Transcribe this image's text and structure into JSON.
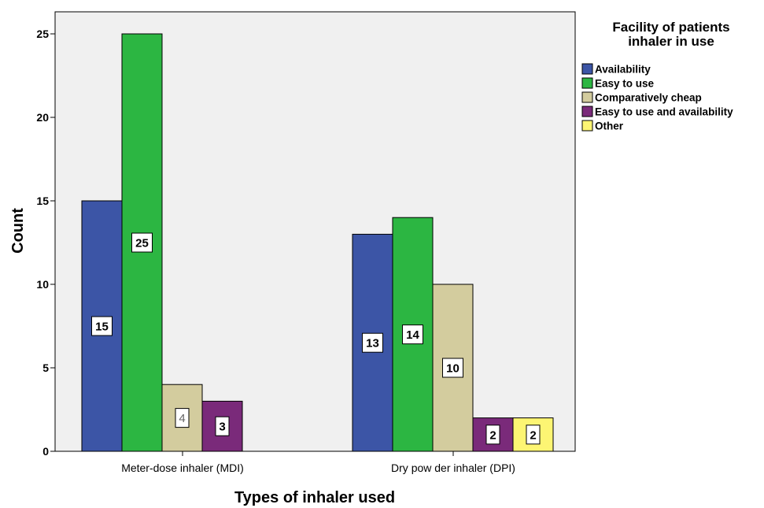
{
  "chart_data": {
    "type": "bar",
    "title": "",
    "xlabel": "Types of inhaler used",
    "ylabel": "Count",
    "categories": [
      "Meter-dose inhaler (MDI)",
      "Dry pow der inhaler (DPI)"
    ],
    "ylim": [
      0,
      27
    ],
    "yticks": [
      0,
      5,
      10,
      15,
      20,
      25
    ],
    "grid": false,
    "legend": {
      "title_lines": [
        "Facility of patients",
        "inhaler in use"
      ],
      "position": "top-right"
    },
    "series": [
      {
        "name": "Availability",
        "color": "#3c55a6",
        "values": [
          15,
          13
        ]
      },
      {
        "name": "Easy to use",
        "color": "#2cb642",
        "values": [
          25,
          14
        ]
      },
      {
        "name": "Comparatively cheap",
        "color": "#d3cc9e",
        "values": [
          4,
          10
        ]
      },
      {
        "name": "Easy to use and availability",
        "color": "#7a2a7a",
        "values": [
          3,
          2
        ]
      },
      {
        "name": "Other",
        "color": "#fdf573",
        "values": [
          null,
          2
        ]
      }
    ],
    "plot_background": "#f0f0f0"
  }
}
